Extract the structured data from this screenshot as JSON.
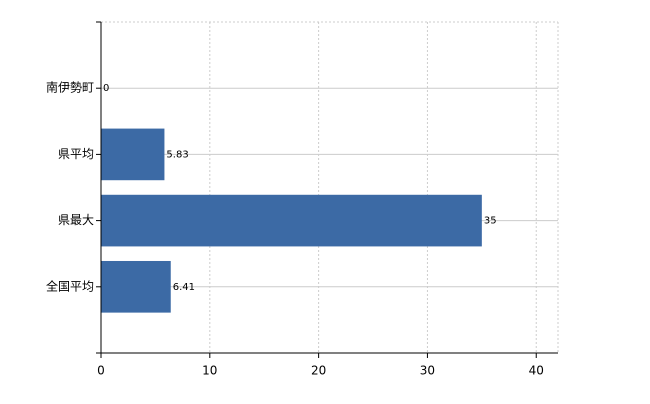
{
  "chart_data": {
    "type": "bar",
    "orientation": "horizontal",
    "categories": [
      "南伊勢町",
      "県平均",
      "県最大",
      "全国平均"
    ],
    "values": [
      0,
      5.83,
      35,
      6.41
    ],
    "color": "#3c6aa5",
    "xlim": [
      0,
      42
    ],
    "xticks": [
      0,
      10,
      20,
      30,
      40
    ],
    "grid": true,
    "data_labels": true
  }
}
